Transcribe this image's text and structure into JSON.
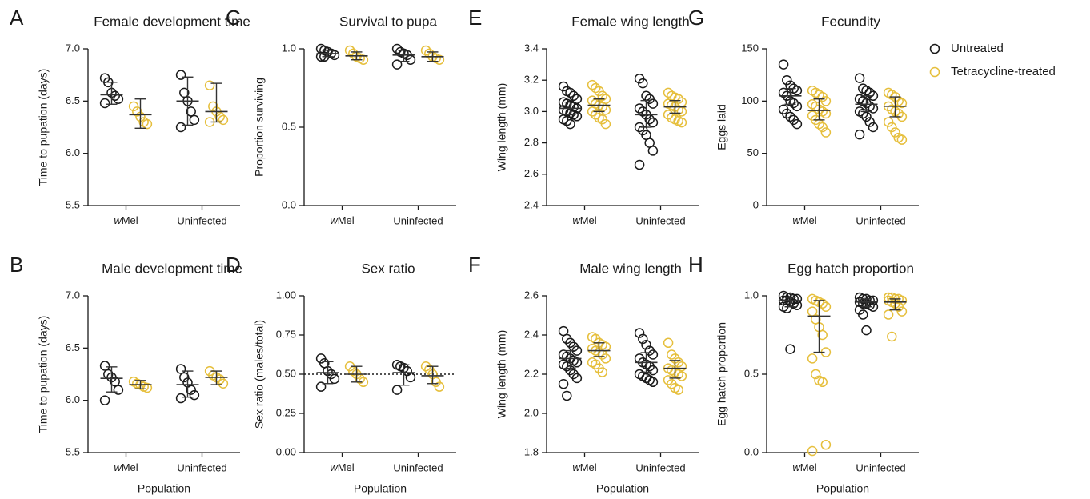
{
  "legend": [
    {
      "name": "Untreated",
      "color": "#1a1a1a"
    },
    {
      "name": "Tetracycline-treated",
      "color": "#e6bf3c"
    }
  ],
  "chart_data": [
    {
      "type": "dot",
      "letter": "A",
      "title": "Female development time",
      "y_label": "Time to pupation (days)",
      "categories": [
        "wMel",
        "Uninfected"
      ],
      "ylim": [
        5.5,
        7.0
      ],
      "yticks": [
        5.5,
        {
          "value": 6,
          "label": "6.0"
        },
        6.5,
        {
          "value": 7,
          "label": "7.0"
        }
      ],
      "series": [
        {
          "values": [
            [
              6.72,
              6.68,
              6.58,
              6.55,
              6.52,
              6.48
            ],
            [
              6.75,
              6.58,
              6.5,
              6.4,
              6.32,
              6.25
            ]
          ],
          "centers": [
            6.56,
            6.5
          ],
          "lows": [
            6.47,
            6.27
          ],
          "highs": [
            6.68,
            6.73
          ]
        },
        {
          "values": [
            [
              6.45,
              6.4,
              6.35,
              6.3,
              6.28
            ],
            [
              6.65,
              6.45,
              6.4,
              6.35,
              6.32,
              6.3
            ]
          ],
          "centers": [
            6.37,
            6.4
          ],
          "lows": [
            6.24,
            6.3
          ],
          "highs": [
            6.52,
            6.67
          ]
        }
      ]
    },
    {
      "type": "dot",
      "letter": "B",
      "title": "Male development time",
      "y_label": "Time to pupation (days)",
      "x_label": "Population",
      "categories": [
        "wMel",
        "Uninfected"
      ],
      "ylim": [
        5.5,
        7.0
      ],
      "yticks": [
        5.5,
        {
          "value": 6,
          "label": "6.0"
        },
        6.5,
        {
          "value": 7,
          "label": "7.0"
        }
      ],
      "series": [
        {
          "values": [
            [
              6.33,
              6.25,
              6.22,
              6.18,
              6.1,
              6.0
            ],
            [
              6.3,
              6.22,
              6.17,
              6.1,
              6.05,
              6.02
            ]
          ],
          "centers": [
            6.21,
            6.15
          ],
          "lows": [
            6.08,
            6.03
          ],
          "highs": [
            6.32,
            6.28
          ]
        },
        {
          "values": [
            [
              6.18,
              6.16,
              6.15,
              6.13,
              6.12
            ],
            [
              6.28,
              6.24,
              6.22,
              6.2,
              6.16
            ]
          ],
          "centers": [
            6.15,
            6.22
          ],
          "lows": [
            6.11,
            6.15
          ],
          "highs": [
            6.19,
            6.28
          ]
        }
      ]
    },
    {
      "type": "dot",
      "letter": "C",
      "title": "Survival to pupa",
      "y_label": "Proportion surviving",
      "categories": [
        "wMel",
        "Uninfected"
      ],
      "ylim": [
        0,
        1.0
      ],
      "yticks": [
        {
          "value": 0,
          "label": "0.0"
        },
        0.5,
        {
          "value": 1,
          "label": "1.0"
        }
      ],
      "series": [
        {
          "values": [
            [
              1.0,
              0.99,
              0.98,
              0.97,
              0.96,
              0.95,
              0.95
            ],
            [
              1.0,
              0.98,
              0.97,
              0.96,
              0.93,
              0.9
            ]
          ],
          "centers": [
            0.97,
            0.96
          ],
          "lows": [
            0.95,
            0.92
          ],
          "highs": [
            0.99,
            0.99
          ]
        },
        {
          "values": [
            [
              0.99,
              0.97,
              0.95,
              0.94,
              0.93
            ],
            [
              0.99,
              0.97,
              0.95,
              0.94,
              0.93
            ]
          ],
          "centers": [
            0.955,
            0.95
          ],
          "lows": [
            0.93,
            0.92
          ],
          "highs": [
            0.98,
            0.98
          ]
        }
      ]
    },
    {
      "type": "dot",
      "letter": "D",
      "title": "Sex ratio",
      "y_label": "Sex ratio (males/total)",
      "x_label": "Population",
      "categories": [
        "wMel",
        "Uninfected"
      ],
      "ylim": [
        0,
        1.0
      ],
      "yticks": [
        {
          "value": 0,
          "label": "0.00"
        },
        0.25,
        {
          "value": 0.5,
          "label": "0.50"
        },
        0.75,
        {
          "value": 1,
          "label": "1.00"
        }
      ],
      "hline": 0.5,
      "series": [
        {
          "values": [
            [
              0.6,
              0.57,
              0.52,
              0.5,
              0.47,
              0.42
            ],
            [
              0.56,
              0.55,
              0.54,
              0.52,
              0.48,
              0.4
            ]
          ],
          "centers": [
            0.51,
            0.51
          ],
          "lows": [
            0.44,
            0.43
          ],
          "highs": [
            0.58,
            0.56
          ]
        },
        {
          "values": [
            [
              0.55,
              0.52,
              0.5,
              0.47,
              0.45
            ],
            [
              0.55,
              0.53,
              0.5,
              0.45,
              0.42
            ]
          ],
          "centers": [
            0.5,
            0.49
          ],
          "lows": [
            0.45,
            0.44
          ],
          "highs": [
            0.55,
            0.55
          ]
        }
      ]
    },
    {
      "type": "dot",
      "letter": "E",
      "title": "Female wing length",
      "y_label": "Wing length (mm)",
      "categories": [
        "wMel",
        "Uninfected"
      ],
      "ylim": [
        2.4,
        3.4
      ],
      "yticks": [
        2.4,
        2.6,
        2.8,
        {
          "value": 3,
          "label": "3.0"
        },
        3.2,
        3.4
      ],
      "series": [
        {
          "values": [
            [
              3.16,
              3.13,
              3.12,
              3.1,
              3.08,
              3.06,
              3.05,
              3.04,
              3.03,
              3.02,
              3.01,
              3.0,
              2.99,
              2.98,
              2.97,
              2.95,
              2.94,
              2.92
            ],
            [
              3.21,
              3.18,
              3.1,
              3.08,
              3.05,
              3.02,
              3.0,
              2.98,
              2.95,
              2.93,
              2.9,
              2.88,
              2.85,
              2.8,
              2.75,
              2.66
            ]
          ],
          "centers": [
            3.02,
            2.98
          ],
          "lows": [
            2.98,
            2.9
          ],
          "highs": [
            3.06,
            3.07
          ]
        },
        {
          "values": [
            [
              3.17,
              3.15,
              3.13,
              3.1,
              3.08,
              3.07,
              3.05,
              3.04,
              3.03,
              3.01,
              3.0,
              2.98,
              2.96,
              2.95,
              2.92
            ],
            [
              3.12,
              3.1,
              3.09,
              3.08,
              3.06,
              3.05,
              3.04,
              3.03,
              3.01,
              3.0,
              2.98,
              2.96,
              2.95,
              2.94,
              2.93
            ]
          ],
          "centers": [
            3.04,
            3.03
          ],
          "lows": [
            3.0,
            2.99
          ],
          "highs": [
            3.08,
            3.07
          ]
        }
      ]
    },
    {
      "type": "dot",
      "letter": "F",
      "title": "Male wing length",
      "y_label": "Wing length (mm)",
      "x_label": "Population",
      "categories": [
        "wMel",
        "Uninfected"
      ],
      "ylim": [
        1.8,
        2.6
      ],
      "yticks": [
        1.8,
        {
          "value": 2,
          "label": "2.0"
        },
        2.2,
        2.4,
        2.6
      ],
      "series": [
        {
          "values": [
            [
              2.42,
              2.38,
              2.36,
              2.34,
              2.32,
              2.3,
              2.29,
              2.28,
              2.27,
              2.26,
              2.25,
              2.24,
              2.22,
              2.2,
              2.18,
              2.15,
              2.09
            ],
            [
              2.41,
              2.38,
              2.35,
              2.32,
              2.3,
              2.28,
              2.26,
              2.25,
              2.24,
              2.22,
              2.2,
              2.19,
              2.18,
              2.17,
              2.16
            ]
          ],
          "centers": [
            2.28,
            2.26
          ],
          "lows": [
            2.23,
            2.21
          ],
          "highs": [
            2.32,
            2.31
          ]
        },
        {
          "values": [
            [
              2.39,
              2.38,
              2.36,
              2.35,
              2.34,
              2.33,
              2.32,
              2.31,
              2.3,
              2.28,
              2.26,
              2.25,
              2.23,
              2.21
            ],
            [
              2.36,
              2.3,
              2.28,
              2.26,
              2.24,
              2.23,
              2.22,
              2.21,
              2.2,
              2.19,
              2.17,
              2.15,
              2.13,
              2.12
            ]
          ],
          "centers": [
            2.32,
            2.23
          ],
          "lows": [
            2.29,
            2.18
          ],
          "highs": [
            2.36,
            2.27
          ]
        }
      ]
    },
    {
      "type": "dot",
      "letter": "G",
      "title": "Fecundity",
      "y_label": "Eggs laid",
      "categories": [
        "wMel",
        "Uninfected"
      ],
      "ylim": [
        0,
        150
      ],
      "yticks": [
        0,
        50,
        100,
        150
      ],
      "series": [
        {
          "values": [
            [
              135,
              120,
              115,
              112,
              110,
              108,
              105,
              100,
              98,
              95,
              92,
              88,
              85,
              82,
              78
            ],
            [
              122,
              112,
              110,
              108,
              105,
              102,
              100,
              98,
              95,
              93,
              90,
              88,
              85,
              80,
              75,
              68
            ]
          ],
          "centers": [
            105,
            97
          ],
          "lows": [
            97,
            90
          ],
          "highs": [
            112,
            105
          ]
        },
        {
          "values": [
            [
              110,
              108,
              106,
              104,
              100,
              97,
              95,
              92,
              90,
              88,
              86,
              82,
              78,
              75,
              70
            ],
            [
              108,
              106,
              104,
              100,
              98,
              95,
              92,
              90,
              88,
              85,
              80,
              75,
              70,
              65,
              63
            ]
          ],
          "centers": [
            91,
            95
          ],
          "lows": [
            82,
            85
          ],
          "highs": [
            102,
            104
          ]
        }
      ]
    },
    {
      "type": "dot",
      "letter": "H",
      "title": "Egg hatch proportion",
      "y_label": "Egg hatch proportion",
      "x_label": "Population",
      "categories": [
        "wMel",
        "Uninfected"
      ],
      "ylim": [
        0,
        1.0
      ],
      "yticks": [
        {
          "value": 0,
          "label": "0.0"
        },
        0.5,
        {
          "value": 1,
          "label": "1.0"
        }
      ],
      "series": [
        {
          "values": [
            [
              1.0,
              0.99,
              0.99,
              0.98,
              0.98,
              0.97,
              0.97,
              0.96,
              0.95,
              0.94,
              0.93,
              0.92,
              0.66
            ],
            [
              0.99,
              0.98,
              0.98,
              0.97,
              0.97,
              0.96,
              0.95,
              0.95,
              0.94,
              0.93,
              0.91,
              0.88,
              0.78
            ]
          ],
          "centers": [
            0.97,
            0.96
          ],
          "lows": [
            0.93,
            0.93
          ],
          "highs": [
            0.99,
            0.98
          ]
        },
        {
          "values": [
            [
              0.98,
              0.97,
              0.96,
              0.95,
              0.93,
              0.9,
              0.85,
              0.8,
              0.75,
              0.64,
              0.6,
              0.5,
              0.46,
              0.45,
              0.05,
              0.01
            ],
            [
              0.99,
              0.99,
              0.98,
              0.98,
              0.97,
              0.97,
              0.96,
              0.95,
              0.93,
              0.9,
              0.88,
              0.74
            ]
          ],
          "centers": [
            0.87,
            0.96
          ],
          "lows": [
            0.64,
            0.91
          ],
          "highs": [
            0.97,
            0.98
          ]
        }
      ]
    }
  ]
}
